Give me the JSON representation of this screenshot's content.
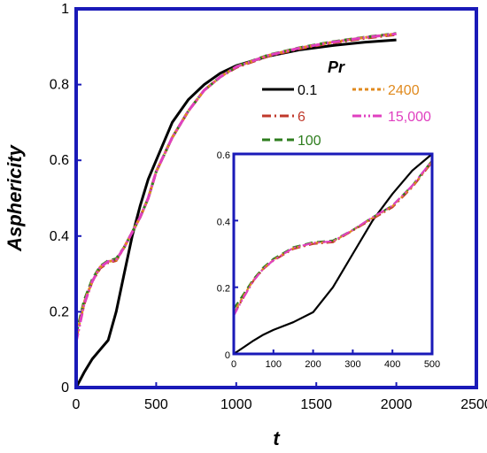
{
  "chart_data": {
    "type": "line",
    "xlabel": "t",
    "ylabel": "Asphericity",
    "xlim": [
      0,
      2500
    ],
    "ylim": [
      0,
      1
    ],
    "xticks": [
      "0",
      "500",
      "1000",
      "1500",
      "2000",
      "2500"
    ],
    "yticks": [
      "0",
      "0.2",
      "0.4",
      "0.6",
      "0.8",
      "1"
    ],
    "grid": false,
    "legend": {
      "title": "Pr",
      "placement": "top-right"
    },
    "series": [
      {
        "name": "0.1",
        "color": "#000000",
        "style": "solid",
        "x": [
          0,
          50,
          100,
          150,
          200,
          250,
          300,
          350,
          400,
          450,
          500,
          600,
          700,
          800,
          900,
          1000,
          1200,
          1400,
          1600,
          1800,
          2000
        ],
        "y": [
          0,
          0.04,
          0.075,
          0.1,
          0.125,
          0.2,
          0.3,
          0.4,
          0.48,
          0.55,
          0.6,
          0.7,
          0.76,
          0.8,
          0.83,
          0.85,
          0.875,
          0.892,
          0.903,
          0.912,
          0.918
        ]
      },
      {
        "name": "6",
        "color": "#c0392b",
        "style": "dashdot",
        "x": [
          0,
          50,
          100,
          150,
          200,
          250,
          300,
          350,
          400,
          450,
          500,
          600,
          700,
          800,
          900,
          1000,
          1200,
          1400,
          1600,
          1800,
          2000
        ],
        "y": [
          0.13,
          0.22,
          0.28,
          0.315,
          0.33,
          0.335,
          0.37,
          0.41,
          0.45,
          0.5,
          0.57,
          0.66,
          0.73,
          0.785,
          0.82,
          0.845,
          0.875,
          0.895,
          0.91,
          0.922,
          0.932
        ]
      },
      {
        "name": "100",
        "color": "#2e7d1e",
        "style": "dashed",
        "x": [
          0,
          50,
          100,
          150,
          200,
          250,
          300,
          350,
          400,
          450,
          500,
          600,
          700,
          800,
          900,
          1000,
          1200,
          1400,
          1600,
          1800,
          2000
        ],
        "y": [
          0.14,
          0.23,
          0.285,
          0.32,
          0.335,
          0.34,
          0.37,
          0.41,
          0.45,
          0.5,
          0.57,
          0.66,
          0.73,
          0.785,
          0.82,
          0.848,
          0.878,
          0.898,
          0.913,
          0.925,
          0.935
        ]
      },
      {
        "name": "2400",
        "color": "#e08a1e",
        "style": "dotted",
        "x": [
          0,
          50,
          100,
          150,
          200,
          250,
          300,
          350,
          400,
          450,
          500,
          600,
          700,
          800,
          900,
          1000,
          1200,
          1400,
          1600,
          1800,
          2000
        ],
        "y": [
          0.13,
          0.225,
          0.28,
          0.318,
          0.333,
          0.336,
          0.37,
          0.41,
          0.45,
          0.5,
          0.57,
          0.66,
          0.73,
          0.785,
          0.82,
          0.847,
          0.877,
          0.897,
          0.912,
          0.924,
          0.934
        ]
      },
      {
        "name": "15,000",
        "color": "#e040c0",
        "style": "dashdotdot",
        "x": [
          0,
          50,
          100,
          150,
          200,
          250,
          300,
          350,
          400,
          450,
          500,
          600,
          700,
          800,
          900,
          1000,
          1200,
          1400,
          1600,
          1800,
          2000
        ],
        "y": [
          0.12,
          0.22,
          0.28,
          0.318,
          0.333,
          0.337,
          0.37,
          0.41,
          0.45,
          0.5,
          0.57,
          0.66,
          0.73,
          0.785,
          0.82,
          0.847,
          0.877,
          0.897,
          0.912,
          0.924,
          0.934
        ]
      }
    ],
    "inset": {
      "xlim": [
        0,
        500
      ],
      "ylim": [
        0,
        0.6
      ],
      "xticks": [
        "0",
        "100",
        "200",
        "300",
        "400",
        "500"
      ],
      "yticks": [
        "0",
        "0.2",
        "0.4",
        "0.6"
      ],
      "series": [
        {
          "ref": "0.1",
          "x": [
            0,
            25,
            50,
            75,
            100,
            150,
            200,
            250,
            300,
            350,
            400,
            450,
            500
          ],
          "y": [
            0,
            0.02,
            0.04,
            0.058,
            0.072,
            0.095,
            0.125,
            0.2,
            0.3,
            0.4,
            0.48,
            0.55,
            0.6
          ]
        },
        {
          "ref": "6",
          "x": [
            0,
            25,
            50,
            75,
            100,
            150,
            200,
            250,
            300,
            350,
            400,
            450,
            500
          ],
          "y": [
            0.12,
            0.17,
            0.22,
            0.255,
            0.28,
            0.315,
            0.33,
            0.335,
            0.37,
            0.405,
            0.44,
            0.5,
            0.575
          ]
        },
        {
          "ref": "100",
          "x": [
            0,
            25,
            50,
            75,
            100,
            150,
            200,
            250,
            300,
            350,
            400,
            450,
            500
          ],
          "y": [
            0.135,
            0.18,
            0.225,
            0.26,
            0.285,
            0.32,
            0.335,
            0.34,
            0.372,
            0.41,
            0.445,
            0.505,
            0.58
          ]
        },
        {
          "ref": "2400",
          "x": [
            0,
            25,
            50,
            75,
            100,
            150,
            200,
            250,
            300,
            350,
            400,
            450,
            500
          ],
          "y": [
            0.125,
            0.175,
            0.222,
            0.257,
            0.282,
            0.317,
            0.333,
            0.337,
            0.371,
            0.408,
            0.443,
            0.502,
            0.577
          ]
        },
        {
          "ref": "15,000",
          "x": [
            0,
            25,
            50,
            75,
            100,
            150,
            200,
            250,
            300,
            350,
            400,
            450,
            500
          ],
          "y": [
            0.115,
            0.17,
            0.22,
            0.256,
            0.281,
            0.318,
            0.333,
            0.338,
            0.372,
            0.41,
            0.445,
            0.505,
            0.58
          ]
        }
      ]
    }
  }
}
